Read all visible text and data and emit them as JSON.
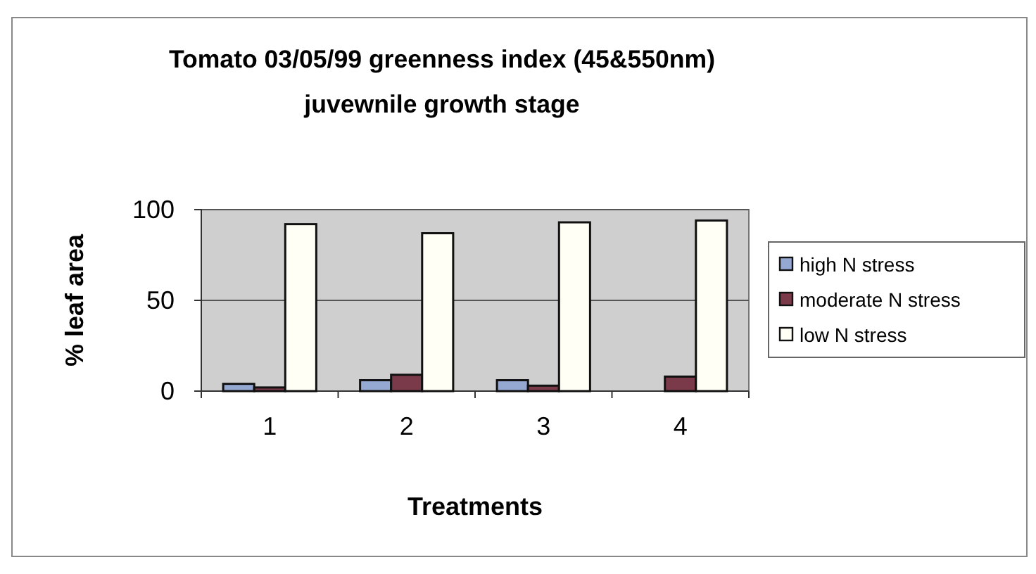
{
  "chart_data": {
    "type": "bar",
    "title": "Tomato 03/05/99 greenness index (45&550nm)",
    "subtitle": "juvewnile growth stage",
    "xlabel": "Treatments",
    "ylabel": "% leaf area",
    "categories": [
      "1",
      "2",
      "3",
      "4"
    ],
    "series": [
      {
        "name": "high N stress",
        "color": "#94a8d2",
        "values": [
          4,
          6,
          6,
          null
        ]
      },
      {
        "name": "moderate N stress",
        "color": "#7b3a4a",
        "values": [
          2,
          9,
          3,
          8
        ]
      },
      {
        "name": "low N stress",
        "color": "#fffff6",
        "values": [
          92,
          87,
          93,
          94
        ]
      }
    ],
    "ylim": [
      0,
      100
    ],
    "yticks": [
      0,
      50,
      100
    ],
    "grid": "y",
    "legend": "right"
  }
}
